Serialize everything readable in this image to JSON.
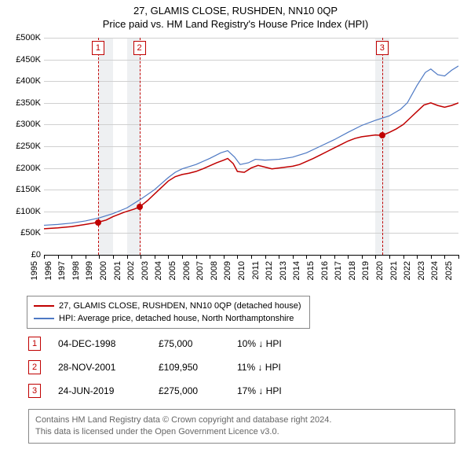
{
  "title1": "27, GLAMIS CLOSE, RUSHDEN, NN10 0QP",
  "title2": "Price paid vs. HM Land Registry's House Price Index (HPI)",
  "chart": {
    "type": "line",
    "x": {
      "min": 1995,
      "max": 2025,
      "ticks": [
        1995,
        1996,
        1997,
        1998,
        1999,
        2000,
        2001,
        2002,
        2003,
        2004,
        2005,
        2006,
        2007,
        2008,
        2009,
        2010,
        2011,
        2012,
        2013,
        2014,
        2015,
        2016,
        2017,
        2018,
        2019,
        2020,
        2021,
        2022,
        2023,
        2024,
        2025
      ]
    },
    "y": {
      "min": 0,
      "max": 500000,
      "step": 50000,
      "currency": "£",
      "tick_labels": [
        "£0",
        "£50K",
        "£100K",
        "£150K",
        "£200K",
        "£250K",
        "£300K",
        "£350K",
        "£400K",
        "£450K",
        "£500K"
      ]
    },
    "background_color": "#ffffff",
    "grid_color": "#d0d0d0",
    "shaded_color": "#eef0f2",
    "shaded_ranges": [
      [
        1999,
        2000
      ],
      [
        2001,
        2002
      ],
      [
        2019,
        2020
      ]
    ],
    "series": [
      {
        "id": "property",
        "label": "27, GLAMIS CLOSE, RUSHDEN, NN10 0QP (detached house)",
        "color": "#c00000",
        "line_width": 1.5,
        "points": [
          [
            1995.0,
            60000
          ],
          [
            1996.0,
            62000
          ],
          [
            1997.0,
            65000
          ],
          [
            1998.0,
            70000
          ],
          [
            1998.92,
            75000
          ],
          [
            1999.5,
            80000
          ],
          [
            2000.0,
            88000
          ],
          [
            2000.8,
            98000
          ],
          [
            2001.5,
            105000
          ],
          [
            2001.91,
            109950
          ],
          [
            2002.5,
            125000
          ],
          [
            2003.0,
            140000
          ],
          [
            2003.5,
            155000
          ],
          [
            2004.0,
            170000
          ],
          [
            2004.5,
            180000
          ],
          [
            2005.0,
            185000
          ],
          [
            2005.5,
            188000
          ],
          [
            2006.0,
            192000
          ],
          [
            2006.5,
            198000
          ],
          [
            2007.0,
            205000
          ],
          [
            2007.5,
            212000
          ],
          [
            2008.0,
            218000
          ],
          [
            2008.3,
            222000
          ],
          [
            2008.7,
            210000
          ],
          [
            2009.0,
            192000
          ],
          [
            2009.5,
            190000
          ],
          [
            2010.0,
            200000
          ],
          [
            2010.5,
            206000
          ],
          [
            2011.0,
            202000
          ],
          [
            2011.5,
            198000
          ],
          [
            2012.0,
            200000
          ],
          [
            2012.5,
            202000
          ],
          [
            2013.0,
            204000
          ],
          [
            2013.5,
            208000
          ],
          [
            2014.0,
            215000
          ],
          [
            2014.5,
            222000
          ],
          [
            2015.0,
            230000
          ],
          [
            2015.5,
            238000
          ],
          [
            2016.0,
            246000
          ],
          [
            2016.5,
            254000
          ],
          [
            2017.0,
            262000
          ],
          [
            2017.5,
            268000
          ],
          [
            2018.0,
            272000
          ],
          [
            2018.5,
            274000
          ],
          [
            2019.0,
            276000
          ],
          [
            2019.48,
            275000
          ],
          [
            2020.0,
            282000
          ],
          [
            2020.5,
            290000
          ],
          [
            2021.0,
            300000
          ],
          [
            2021.5,
            315000
          ],
          [
            2022.0,
            330000
          ],
          [
            2022.5,
            345000
          ],
          [
            2023.0,
            350000
          ],
          [
            2023.5,
            344000
          ],
          [
            2024.0,
            340000
          ],
          [
            2024.5,
            344000
          ],
          [
            2025.0,
            350000
          ]
        ]
      },
      {
        "id": "hpi",
        "label": "HPI: Average price, detached house, North Northamptonshire",
        "color": "#4e79c4",
        "line_width": 1.2,
        "points": [
          [
            1995.0,
            68000
          ],
          [
            1996.0,
            70000
          ],
          [
            1997.0,
            73000
          ],
          [
            1998.0,
            78000
          ],
          [
            1999.0,
            85000
          ],
          [
            2000.0,
            95000
          ],
          [
            2001.0,
            108000
          ],
          [
            2002.0,
            128000
          ],
          [
            2003.0,
            150000
          ],
          [
            2004.0,
            178000
          ],
          [
            2004.5,
            190000
          ],
          [
            2005.0,
            198000
          ],
          [
            2006.0,
            208000
          ],
          [
            2007.0,
            222000
          ],
          [
            2007.8,
            235000
          ],
          [
            2008.3,
            240000
          ],
          [
            2008.8,
            225000
          ],
          [
            2009.2,
            208000
          ],
          [
            2009.8,
            212000
          ],
          [
            2010.3,
            220000
          ],
          [
            2011.0,
            218000
          ],
          [
            2012.0,
            220000
          ],
          [
            2013.0,
            225000
          ],
          [
            2014.0,
            235000
          ],
          [
            2015.0,
            250000
          ],
          [
            2016.0,
            265000
          ],
          [
            2017.0,
            282000
          ],
          [
            2018.0,
            298000
          ],
          [
            2019.0,
            310000
          ],
          [
            2020.0,
            320000
          ],
          [
            2020.8,
            335000
          ],
          [
            2021.3,
            350000
          ],
          [
            2022.0,
            390000
          ],
          [
            2022.6,
            420000
          ],
          [
            2023.0,
            428000
          ],
          [
            2023.5,
            415000
          ],
          [
            2024.0,
            412000
          ],
          [
            2024.5,
            425000
          ],
          [
            2025.0,
            435000
          ]
        ]
      }
    ],
    "sale_markers": [
      {
        "idx": "1",
        "x": 1998.92,
        "y": 75000
      },
      {
        "idx": "2",
        "x": 2001.91,
        "y": 109950
      },
      {
        "idx": "3",
        "x": 2019.48,
        "y": 275000
      }
    ],
    "sale_marker_color": "#c00000"
  },
  "legend": {
    "border_color": "#888888",
    "items": [
      {
        "color": "#c00000",
        "label": "27, GLAMIS CLOSE, RUSHDEN, NN10 0QP (detached house)"
      },
      {
        "color": "#4e79c4",
        "label": "HPI: Average price, detached house, North Northamptonshire"
      }
    ]
  },
  "sales_table": {
    "rows": [
      {
        "idx": "1",
        "date": "04-DEC-1998",
        "price": "£75,000",
        "delta": "10% ↓ HPI"
      },
      {
        "idx": "2",
        "date": "28-NOV-2001",
        "price": "£109,950",
        "delta": "11% ↓ HPI"
      },
      {
        "idx": "3",
        "date": "24-JUN-2019",
        "price": "£275,000",
        "delta": "17% ↓ HPI"
      }
    ]
  },
  "footer": {
    "line1": "Contains HM Land Registry data © Crown copyright and database right 2024.",
    "line2": "This data is licensed under the Open Government Licence v3.0."
  }
}
